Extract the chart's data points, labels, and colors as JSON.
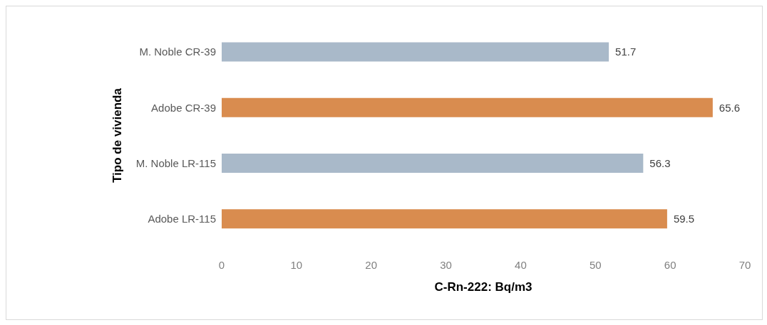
{
  "chart_data": {
    "type": "bar",
    "orientation": "horizontal",
    "xlabel": "C-Rn-222: Bq/m3",
    "ylabel": "Tipo de vivienda",
    "categories": [
      "M. Noble  CR-39",
      "Adobe  CR-39",
      "M. Noble  LR-115",
      "Adobe  LR-115"
    ],
    "values": [
      51.7,
      65.6,
      56.3,
      59.5
    ],
    "colors": [
      "#a9b9c9",
      "#d98c4f",
      "#a9b9c9",
      "#d98c4f"
    ],
    "xlim": [
      0,
      70
    ],
    "xticks": [
      0,
      10,
      20,
      30,
      40,
      50,
      60,
      70
    ],
    "grid": false,
    "data_labels": true
  }
}
